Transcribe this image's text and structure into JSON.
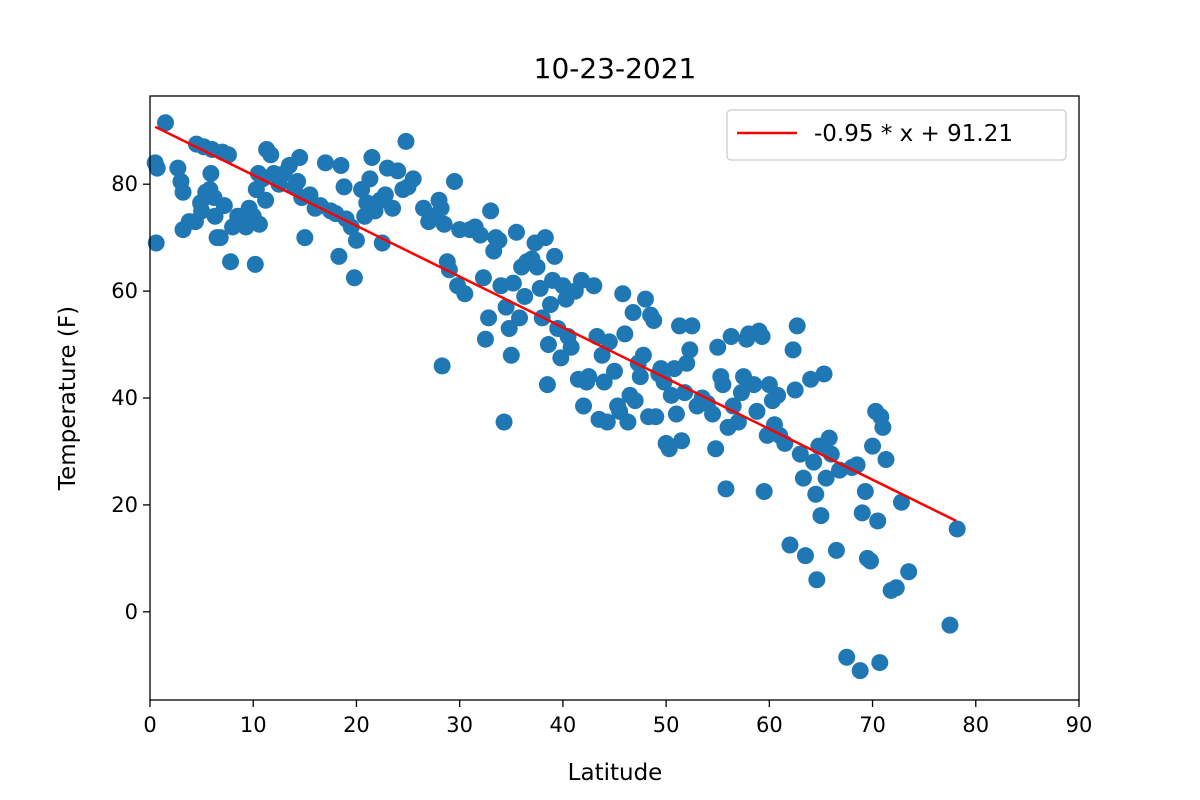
{
  "chart_data": {
    "type": "scatter",
    "title": "10-23-2021",
    "xlabel": "Latitude",
    "ylabel": "Temperature (F)",
    "xlim": [
      0,
      90
    ],
    "ylim": [
      -16.5,
      96.5
    ],
    "xticks": [
      0,
      10,
      20,
      30,
      40,
      50,
      60,
      70,
      80,
      90
    ],
    "yticks": [
      0,
      20,
      40,
      60,
      80
    ],
    "grid": false,
    "legend_position": "top-right",
    "colors": {
      "points": "#1f77b4",
      "regression": "#ff0000"
    },
    "regression": {
      "label": "-0.95 * x + 91.21",
      "slope": -0.95,
      "intercept": 91.21,
      "x_range": [
        0.5,
        78.1
      ]
    },
    "points": [
      [
        0.6,
        69
      ],
      [
        0.5,
        84
      ],
      [
        0.7,
        83
      ],
      [
        1.5,
        91.5
      ],
      [
        2.7,
        83
      ],
      [
        3.0,
        80.5
      ],
      [
        3.2,
        78.5
      ],
      [
        3.2,
        71.5
      ],
      [
        3.8,
        73
      ],
      [
        4.4,
        73
      ],
      [
        4.5,
        87.5
      ],
      [
        4.9,
        76.5
      ],
      [
        5.0,
        75
      ],
      [
        5.2,
        87
      ],
      [
        5.4,
        78.5
      ],
      [
        5.8,
        79
      ],
      [
        5.9,
        82
      ],
      [
        6.0,
        86.5
      ],
      [
        6.2,
        77.5
      ],
      [
        6.3,
        74
      ],
      [
        6.5,
        70
      ],
      [
        6.8,
        70
      ],
      [
        7.0,
        86
      ],
      [
        7.2,
        76
      ],
      [
        7.6,
        85.5
      ],
      [
        7.8,
        65.5
      ],
      [
        8.0,
        72
      ],
      [
        8.5,
        74
      ],
      [
        9.0,
        73
      ],
      [
        9.3,
        72
      ],
      [
        9.6,
        75.5
      ],
      [
        10.0,
        74
      ],
      [
        10.2,
        65
      ],
      [
        10.3,
        79
      ],
      [
        10.5,
        82
      ],
      [
        10.6,
        72.5
      ],
      [
        10.9,
        81
      ],
      [
        11.2,
        77
      ],
      [
        11.3,
        86.5
      ],
      [
        11.7,
        85.5
      ],
      [
        12.0,
        82
      ],
      [
        12.5,
        80
      ],
      [
        13.0,
        82
      ],
      [
        13.5,
        83.5
      ],
      [
        14.0,
        79.5
      ],
      [
        14.3,
        80.5
      ],
      [
        14.5,
        85
      ],
      [
        14.7,
        77.5
      ],
      [
        15.0,
        70
      ],
      [
        15.5,
        78
      ],
      [
        16.0,
        75.5
      ],
      [
        16.5,
        76
      ],
      [
        17.0,
        84
      ],
      [
        17.5,
        75
      ],
      [
        18.0,
        74.5
      ],
      [
        18.3,
        66.5
      ],
      [
        18.5,
        83.5
      ],
      [
        18.8,
        79.5
      ],
      [
        19.0,
        73.5
      ],
      [
        19.5,
        72
      ],
      [
        19.8,
        62.5
      ],
      [
        20.0,
        69.5
      ],
      [
        20.5,
        79
      ],
      [
        20.8,
        74
      ],
      [
        21.0,
        76.5
      ],
      [
        21.3,
        81
      ],
      [
        21.5,
        85
      ],
      [
        21.8,
        75
      ],
      [
        22.0,
        76.5
      ],
      [
        22.3,
        77
      ],
      [
        22.5,
        69
      ],
      [
        22.8,
        78
      ],
      [
        23.0,
        83
      ],
      [
        23.5,
        75.5
      ],
      [
        24.0,
        82.5
      ],
      [
        24.5,
        79
      ],
      [
        24.8,
        88
      ],
      [
        25.0,
        79.5
      ],
      [
        25.5,
        81
      ],
      [
        26.5,
        75.5
      ],
      [
        27.0,
        73
      ],
      [
        27.5,
        74
      ],
      [
        28.0,
        77
      ],
      [
        28.2,
        75.5
      ],
      [
        28.5,
        72.5
      ],
      [
        28.8,
        65.5
      ],
      [
        28.3,
        46
      ],
      [
        29.0,
        64
      ],
      [
        29.5,
        80.5
      ],
      [
        29.8,
        61
      ],
      [
        30.0,
        71.5
      ],
      [
        30.5,
        59.5
      ],
      [
        31.0,
        71.5
      ],
      [
        31.5,
        72
      ],
      [
        32.0,
        70.5
      ],
      [
        32.3,
        62.5
      ],
      [
        32.5,
        51
      ],
      [
        32.8,
        55
      ],
      [
        33.0,
        75
      ],
      [
        33.3,
        67.5
      ],
      [
        33.5,
        70
      ],
      [
        33.8,
        69.5
      ],
      [
        34.0,
        61
      ],
      [
        34.3,
        35.5
      ],
      [
        34.5,
        57
      ],
      [
        34.8,
        53
      ],
      [
        35.0,
        48
      ],
      [
        35.2,
        61.5
      ],
      [
        35.5,
        71
      ],
      [
        35.8,
        55
      ],
      [
        36.0,
        64.5
      ],
      [
        36.3,
        59
      ],
      [
        36.5,
        65.5
      ],
      [
        37.0,
        66
      ],
      [
        37.3,
        69
      ],
      [
        37.5,
        64.5
      ],
      [
        37.8,
        60.5
      ],
      [
        38.0,
        55
      ],
      [
        38.3,
        70
      ],
      [
        38.5,
        42.5
      ],
      [
        38.6,
        50
      ],
      [
        38.8,
        57.5
      ],
      [
        39.0,
        62
      ],
      [
        39.2,
        66.5
      ],
      [
        39.5,
        53
      ],
      [
        39.8,
        47.5
      ],
      [
        40.0,
        61
      ],
      [
        40.3,
        58.5
      ],
      [
        40.5,
        51.5
      ],
      [
        40.8,
        49.5
      ],
      [
        41.2,
        60
      ],
      [
        41.5,
        43.5
      ],
      [
        41.8,
        62
      ],
      [
        42.0,
        38.5
      ],
      [
        42.3,
        43
      ],
      [
        42.5,
        44
      ],
      [
        43.0,
        61
      ],
      [
        43.3,
        51.5
      ],
      [
        43.5,
        36
      ],
      [
        43.8,
        48
      ],
      [
        44.0,
        43
      ],
      [
        44.3,
        35.5
      ],
      [
        44.5,
        50.5
      ],
      [
        45.0,
        45
      ],
      [
        45.3,
        38.5
      ],
      [
        45.5,
        37.5
      ],
      [
        45.8,
        59.5
      ],
      [
        46.0,
        52
      ],
      [
        46.3,
        35.5
      ],
      [
        46.5,
        40.5
      ],
      [
        46.8,
        56
      ],
      [
        47.0,
        39.5
      ],
      [
        47.3,
        46.5
      ],
      [
        47.5,
        44
      ],
      [
        47.8,
        48
      ],
      [
        48.0,
        58.5
      ],
      [
        48.3,
        36.5
      ],
      [
        48.5,
        55.5
      ],
      [
        48.8,
        54.5
      ],
      [
        49.0,
        36.5
      ],
      [
        49.3,
        44.5
      ],
      [
        49.5,
        45.5
      ],
      [
        49.8,
        43
      ],
      [
        50.0,
        31.5
      ],
      [
        50.3,
        30.5
      ],
      [
        50.5,
        40.5
      ],
      [
        50.8,
        45.5
      ],
      [
        51.0,
        37
      ],
      [
        51.3,
        53.5
      ],
      [
        51.5,
        32
      ],
      [
        51.8,
        41
      ],
      [
        52.0,
        46.5
      ],
      [
        52.3,
        49
      ],
      [
        52.5,
        53.5
      ],
      [
        53.0,
        38.5
      ],
      [
        53.5,
        40
      ],
      [
        54.0,
        39
      ],
      [
        54.5,
        37
      ],
      [
        54.8,
        30.5
      ],
      [
        55.0,
        49.5
      ],
      [
        55.3,
        44
      ],
      [
        55.5,
        42.5
      ],
      [
        55.8,
        23
      ],
      [
        56.0,
        34.5
      ],
      [
        56.3,
        51.5
      ],
      [
        56.5,
        38.5
      ],
      [
        57.0,
        35.5
      ],
      [
        57.3,
        41
      ],
      [
        57.5,
        44
      ],
      [
        57.8,
        51
      ],
      [
        58.0,
        52
      ],
      [
        58.5,
        42.5
      ],
      [
        58.8,
        37.5
      ],
      [
        59.0,
        52.5
      ],
      [
        59.3,
        51.5
      ],
      [
        59.5,
        22.5
      ],
      [
        59.8,
        33
      ],
      [
        60.0,
        42.5
      ],
      [
        60.3,
        39.5
      ],
      [
        60.5,
        35
      ],
      [
        60.8,
        40.5
      ],
      [
        61.0,
        33
      ],
      [
        61.5,
        31.5
      ],
      [
        62.0,
        12.5
      ],
      [
        62.3,
        49
      ],
      [
        62.5,
        41.5
      ],
      [
        62.7,
        53.5
      ],
      [
        63.0,
        29.5
      ],
      [
        63.3,
        25
      ],
      [
        63.5,
        10.5
      ],
      [
        64.0,
        43.5
      ],
      [
        64.3,
        28
      ],
      [
        64.5,
        22
      ],
      [
        64.6,
        6
      ],
      [
        64.8,
        31
      ],
      [
        65.0,
        18
      ],
      [
        65.3,
        44.5
      ],
      [
        65.5,
        25
      ],
      [
        65.8,
        32.5
      ],
      [
        66.0,
        29.5
      ],
      [
        66.5,
        11.5
      ],
      [
        66.8,
        26.5
      ],
      [
        67.5,
        -8.5
      ],
      [
        68.0,
        27
      ],
      [
        68.5,
        27.5
      ],
      [
        68.8,
        -11
      ],
      [
        69.0,
        18.5
      ],
      [
        69.3,
        22.5
      ],
      [
        69.5,
        10
      ],
      [
        69.8,
        9.5
      ],
      [
        70.0,
        31
      ],
      [
        70.3,
        37.5
      ],
      [
        70.5,
        17
      ],
      [
        70.7,
        -9.5
      ],
      [
        70.8,
        36.5
      ],
      [
        71.0,
        34.5
      ],
      [
        71.3,
        28.5
      ],
      [
        71.8,
        4
      ],
      [
        72.3,
        4.5
      ],
      [
        72.8,
        20.5
      ],
      [
        73.5,
        7.5
      ],
      [
        77.5,
        -2.5
      ],
      [
        78.2,
        15.5
      ]
    ]
  }
}
